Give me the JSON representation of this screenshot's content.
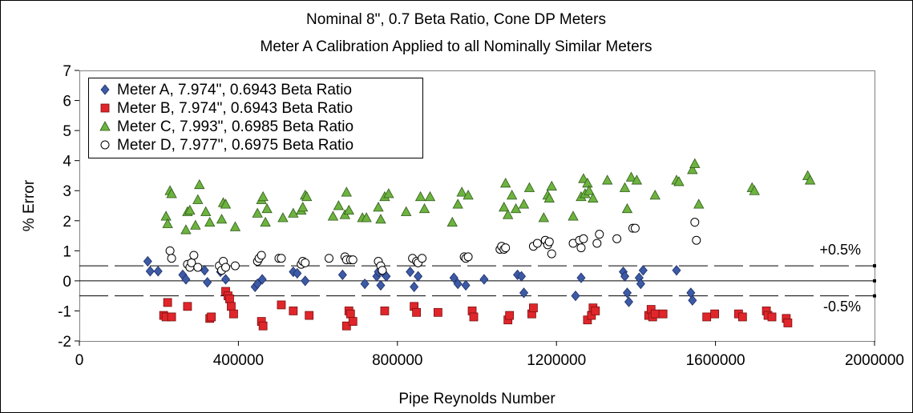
{
  "chart_data": {
    "type": "scatter",
    "title": "Nominal 8\", 0.7 Beta Ratio, Cone DP Meters",
    "subtitle": "Meter A Calibration Applied to all Nominally Similar Meters",
    "xlabel": "Pipe Reynolds Number",
    "ylabel": "% Error",
    "xlim": [
      0,
      2000000
    ],
    "ylim": [
      -2,
      7
    ],
    "x_ticks": [
      0,
      400000,
      800000,
      1200000,
      1600000,
      2000000
    ],
    "y_ticks": [
      -2,
      -1,
      0,
      1,
      2,
      3,
      4,
      5,
      6,
      7
    ],
    "grid": false,
    "legend_position": "top-left",
    "reference_lines": [
      {
        "y": 0.5,
        "style": "long-dash",
        "label": "+0.5%"
      },
      {
        "y": 0,
        "style": "solid",
        "label": ""
      },
      {
        "y": -0.5,
        "style": "long-dash",
        "label": "-0.5%"
      }
    ],
    "series": [
      {
        "name": "Meter A, 7.974\", 0.6943 Beta Ratio",
        "marker": "diamond",
        "color": "#3c5aa6",
        "x": [
          172000,
          178000,
          198000,
          260000,
          268000,
          315000,
          322000,
          355000,
          368000,
          442000,
          448000,
          460000,
          538000,
          548000,
          568000,
          662000,
          718000,
          748000,
          752000,
          758000,
          762000,
          772000,
          832000,
          842000,
          852000,
          942000,
          952000,
          972000,
          1018000,
          1102000,
          1112000,
          1118000,
          1248000,
          1262000,
          1368000,
          1372000,
          1378000,
          1382000,
          1408000,
          1412000,
          1418000,
          1502000,
          1538000,
          1542000
        ],
        "y": [
          0.65,
          0.32,
          0.32,
          0.2,
          0.05,
          0.35,
          -0.05,
          0.3,
          0.05,
          -0.2,
          -0.1,
          0.05,
          0.3,
          0.25,
          0.0,
          0.2,
          -0.1,
          0.15,
          0.3,
          -0.15,
          0.3,
          0.15,
          0.3,
          -0.2,
          0.15,
          0.1,
          -0.1,
          -0.15,
          0.05,
          0.2,
          0.15,
          -0.4,
          -0.5,
          0.1,
          0.3,
          0.15,
          -0.4,
          -0.7,
          0.1,
          -0.1,
          0.35,
          0.35,
          -0.4,
          -0.65
        ]
      },
      {
        "name": "Meter B, 7.974\", 0.6943 Beta Ratio",
        "marker": "square",
        "color": "#e0262b",
        "x": [
          212000,
          218000,
          222000,
          232000,
          272000,
          328000,
          332000,
          368000,
          374000,
          378000,
          382000,
          388000,
          458000,
          462000,
          508000,
          538000,
          578000,
          672000,
          678000,
          682000,
          688000,
          768000,
          842000,
          848000,
          902000,
          988000,
          992000,
          1078000,
          1082000,
          1138000,
          1142000,
          1278000,
          1288000,
          1292000,
          1298000,
          1432000,
          1438000,
          1442000,
          1448000,
          1468000,
          1578000,
          1598000,
          1658000,
          1668000,
          1728000,
          1732000,
          1742000,
          1778000,
          1782000
        ],
        "y": [
          -1.15,
          -1.2,
          -0.72,
          -1.2,
          -0.85,
          -1.25,
          -1.2,
          -0.35,
          -0.5,
          -0.6,
          -0.85,
          -1.1,
          -1.35,
          -1.5,
          -0.8,
          -1.0,
          -1.15,
          -1.5,
          -1.0,
          -1.1,
          -1.35,
          -1.0,
          -0.85,
          -1.05,
          -1.05,
          -1.0,
          -1.2,
          -1.3,
          -1.15,
          -1.1,
          -0.9,
          -1.3,
          -1.15,
          -0.9,
          -1.0,
          -1.15,
          -0.95,
          -1.2,
          -1.1,
          -1.1,
          -1.2,
          -1.1,
          -1.1,
          -1.2,
          -1.0,
          -1.15,
          -1.2,
          -1.25,
          -1.4
        ]
      },
      {
        "name": "Meter C, 7.993\", 0.6985 Beta Ratio",
        "marker": "triangle",
        "color": "#6db33f",
        "x": [
          218000,
          222000,
          228000,
          232000,
          268000,
          272000,
          278000,
          292000,
          298000,
          302000,
          318000,
          328000,
          358000,
          362000,
          368000,
          392000,
          448000,
          458000,
          462000,
          468000,
          472000,
          512000,
          538000,
          558000,
          562000,
          568000,
          572000,
          638000,
          652000,
          668000,
          672000,
          678000,
          712000,
          722000,
          752000,
          758000,
          768000,
          778000,
          822000,
          858000,
          868000,
          882000,
          938000,
          952000,
          962000,
          978000,
          1068000,
          1072000,
          1078000,
          1088000,
          1098000,
          1118000,
          1132000,
          1168000,
          1178000,
          1182000,
          1188000,
          1242000,
          1262000,
          1268000,
          1272000,
          1278000,
          1282000,
          1292000,
          1328000,
          1372000,
          1378000,
          1388000,
          1402000,
          1448000,
          1502000,
          1508000,
          1542000,
          1548000,
          1558000,
          1692000,
          1698000,
          1832000,
          1838000
        ],
        "y": [
          2.15,
          1.9,
          3.0,
          2.9,
          1.7,
          2.3,
          2.35,
          1.85,
          2.7,
          3.2,
          2.3,
          1.95,
          2.05,
          2.6,
          2.55,
          1.8,
          2.25,
          2.7,
          2.8,
          1.95,
          2.4,
          2.1,
          2.25,
          2.35,
          2.45,
          2.85,
          2.8,
          2.15,
          2.5,
          2.2,
          2.95,
          2.35,
          2.1,
          2.1,
          2.45,
          2.05,
          2.8,
          2.9,
          2.3,
          2.8,
          2.4,
          2.8,
          1.95,
          2.55,
          2.95,
          2.85,
          2.45,
          3.25,
          2.2,
          2.85,
          2.4,
          2.55,
          3.1,
          2.1,
          2.85,
          2.75,
          3.15,
          2.15,
          2.8,
          3.4,
          2.9,
          3.25,
          3.0,
          2.75,
          3.35,
          3.1,
          2.4,
          3.45,
          3.35,
          2.85,
          3.35,
          3.3,
          3.7,
          3.9,
          2.55,
          3.1,
          3.0,
          3.5,
          3.35
        ]
      },
      {
        "name": "Meter D, 7.977\", 0.6975 Beta Ratio",
        "marker": "circle",
        "color": "#ffffff",
        "x": [
          228000,
          232000,
          272000,
          278000,
          282000,
          288000,
          298000,
          352000,
          358000,
          362000,
          368000,
          392000,
          448000,
          452000,
          458000,
          502000,
          508000,
          558000,
          562000,
          568000,
          628000,
          668000,
          672000,
          682000,
          688000,
          752000,
          758000,
          762000,
          838000,
          848000,
          852000,
          862000,
          968000,
          972000,
          978000,
          1058000,
          1062000,
          1068000,
          1072000,
          1142000,
          1152000,
          1172000,
          1178000,
          1182000,
          1188000,
          1242000,
          1258000,
          1262000,
          1268000,
          1302000,
          1308000,
          1352000,
          1392000,
          1398000,
          1548000,
          1552000
        ],
        "y": [
          1.0,
          0.75,
          0.55,
          0.45,
          0.6,
          0.85,
          0.45,
          0.5,
          0.35,
          0.65,
          0.45,
          0.5,
          0.65,
          0.75,
          0.85,
          0.75,
          0.75,
          0.55,
          0.65,
          0.6,
          0.75,
          0.8,
          0.7,
          0.7,
          0.7,
          0.65,
          0.5,
          0.35,
          0.75,
          0.65,
          0.6,
          0.75,
          0.8,
          0.75,
          0.8,
          1.05,
          1.15,
          1.05,
          1.1,
          1.15,
          1.25,
          1.35,
          1.2,
          1.3,
          0.9,
          1.25,
          1.35,
          1.1,
          1.4,
          1.25,
          1.55,
          1.4,
          1.75,
          1.75,
          1.95,
          1.35
        ]
      }
    ]
  }
}
